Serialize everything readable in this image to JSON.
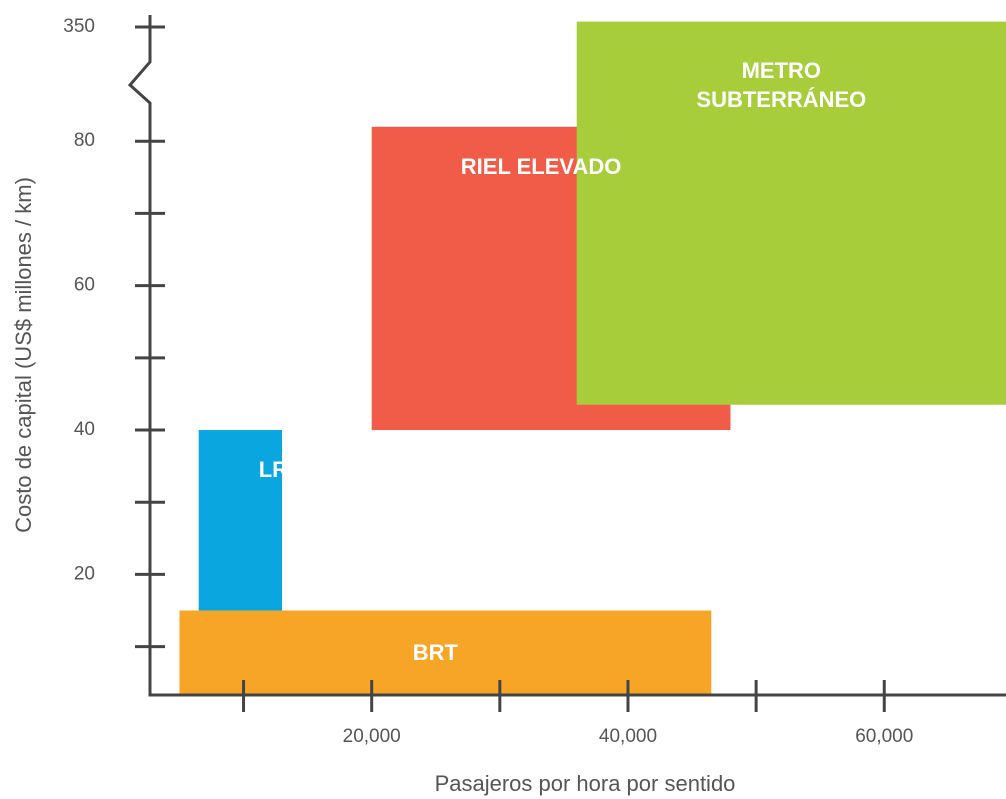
{
  "chart_data": {
    "type": "range-box",
    "x_label": "Pasajeros por hora por sentido",
    "y_label": "Costo de capital (US$ millones / km)",
    "xlim": [
      2700,
      69500
    ],
    "xticks": [
      {
        "value": 20000,
        "label": "20,000"
      },
      {
        "value": 40000,
        "label": "40,000"
      },
      {
        "value": 60000,
        "label": "60,000"
      }
    ],
    "xminor": [
      10000,
      30000,
      50000
    ],
    "ylim": [
      3.3,
      380
    ],
    "ybreak": 88,
    "yticks": [
      20,
      40,
      60,
      80,
      350
    ],
    "yminor": [
      10,
      30,
      50,
      70
    ],
    "series": [
      {
        "name": "BRT",
        "color": "#f7a527",
        "x": [
          5000,
          46500
        ],
        "y": [
          3.5,
          15
        ]
      },
      {
        "name": "LRT",
        "color": "#0aa6df",
        "x": [
          6500,
          13000
        ],
        "y": [
          15,
          40
        ]
      },
      {
        "name": "RIEL ELEVADO",
        "color": "#f05c48",
        "x": [
          20000,
          48000
        ],
        "y": [
          40,
          82
        ]
      },
      {
        "name": "METRO SUBTERRÁNEO",
        "color": "#a8cd3a",
        "x": [
          36000,
          69500
        ],
        "y": [
          43.5,
          375
        ]
      }
    ]
  }
}
